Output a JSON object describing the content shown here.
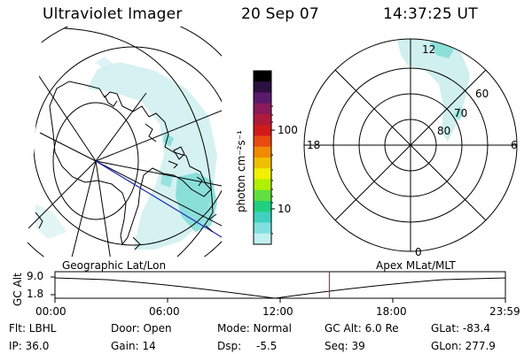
{
  "header": {
    "instrument": "Ultraviolet Imager",
    "date": "20 Sep 07",
    "time": "14:37:25 UT"
  },
  "colorbar": {
    "unit_label": "photon cm⁻²s⁻¹",
    "ticks": [
      "100",
      "10"
    ],
    "colors": [
      "#000000",
      "#2b1040",
      "#5a1a6a",
      "#8a1a5a",
      "#b01a3a",
      "#d01a1a",
      "#e84a10",
      "#f08a00",
      "#f0c000",
      "#f0f000",
      "#b0f000",
      "#60e040",
      "#20d080",
      "#40d0c0",
      "#80e0e0",
      "#c0f0f0"
    ]
  },
  "polar_plot": {
    "mlt_labels": {
      "top": "12",
      "left": "18",
      "right": "6",
      "bottom": "0"
    },
    "lat_labels": [
      "60",
      "70",
      "80"
    ]
  },
  "timeline": {
    "left_label": "Geographic Lat/Lon",
    "right_label": "Apex MLat/MLT",
    "y_axis_title": "GC Alt",
    "y_ticks": [
      "9.0",
      "1.8"
    ],
    "x_ticks": [
      "00:00",
      "06:00",
      "12:00",
      "18:00",
      "23:59"
    ],
    "marker_time_hours": 14.62,
    "marker_color": "#e02020"
  },
  "info": {
    "flt": "Flt: LBHL",
    "ip": "IP: 36.0",
    "door": "Door: Open",
    "gain": "Gain: 14",
    "mode": "Mode: Normal",
    "dsp": "Dsp:",
    "dsp_val": "-5.5",
    "gcalt": "GC Alt: 6.0 Re",
    "seq": "Seq: 39",
    "glat": "GLat: -83.4",
    "glon": "GLon: 277.9"
  }
}
